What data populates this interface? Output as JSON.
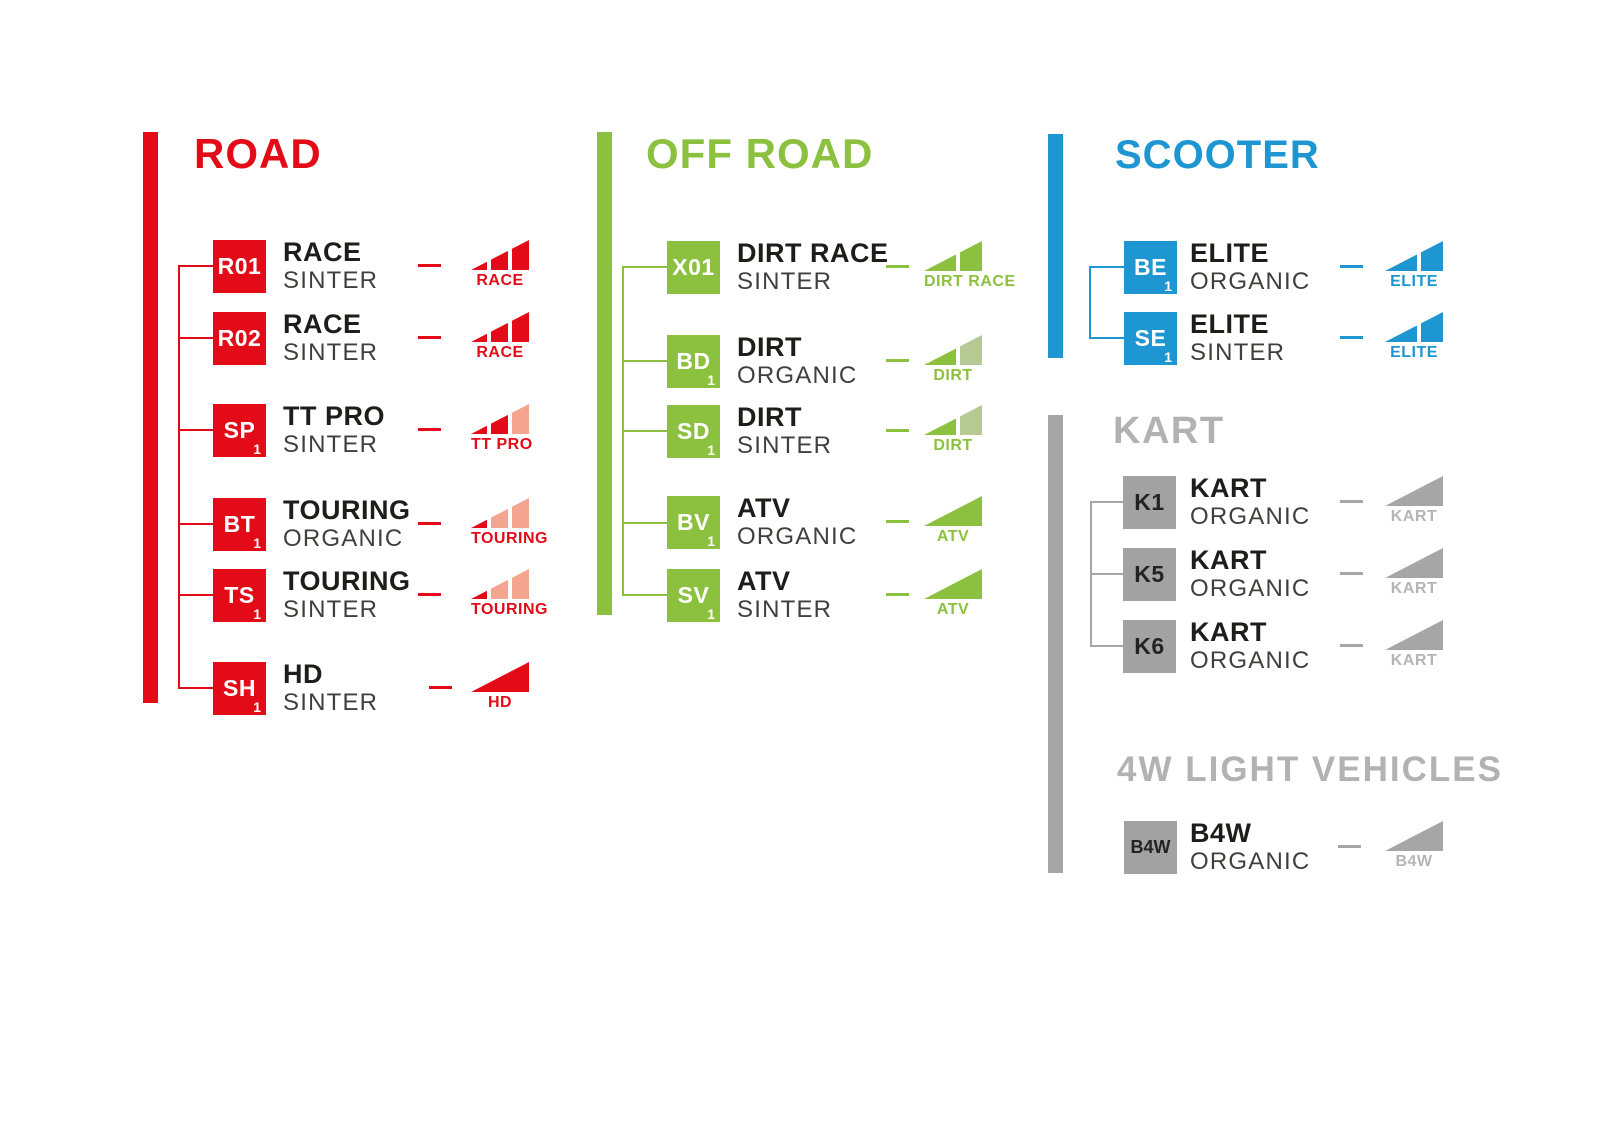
{
  "sections": {
    "road": {
      "title": "ROAD",
      "title_color": "#e30b17",
      "bar_color": "#e30b17",
      "badge_bg": "#e30b17",
      "badge_fg": "#ffffff",
      "accent": "#e30b17",
      "label_color": "#e30b17",
      "colors": {
        "full": "#e30b17",
        "light": "#f3a58f"
      },
      "items": [
        {
          "code": "R01",
          "sub": "",
          "name": "RACE",
          "material": "SINTER",
          "icon": {
            "label": "RACE",
            "segments": [
              "#e30b17",
              "#e30b17",
              "#e30b17"
            ]
          }
        },
        {
          "code": "R02",
          "sub": "",
          "name": "RACE",
          "material": "SINTER",
          "icon": {
            "label": "RACE",
            "segments": [
              "#e30b17",
              "#e30b17",
              "#e30b17"
            ]
          }
        },
        {
          "code": "SP",
          "sub": "1",
          "name": "TT PRO",
          "material": "SINTER",
          "icon": {
            "label": "TT PRO",
            "segments": [
              "#e30b17",
              "#e30b17",
              "#f3a58f"
            ]
          }
        },
        {
          "code": "BT",
          "sub": "1",
          "name": "TOURING",
          "material": "ORGANIC",
          "icon": {
            "label": "TOURING",
            "segments": [
              "#e30b17",
              "#f3a58f",
              "#f3a58f"
            ]
          }
        },
        {
          "code": "TS",
          "sub": "1",
          "name": "TOURING",
          "material": "SINTER",
          "icon": {
            "label": "TOURING",
            "segments": [
              "#e30b17",
              "#f3a58f",
              "#f3a58f"
            ]
          }
        },
        {
          "code": "SH",
          "sub": "1",
          "name": "HD",
          "material": "SINTER",
          "icon": {
            "label": "HD",
            "segments": [
              "#e30b17"
            ]
          }
        }
      ]
    },
    "offroad": {
      "title": "OFF ROAD",
      "title_color": "#8cc140",
      "bar_color": "#8cc140",
      "badge_bg": "#8cc140",
      "badge_fg": "#ffffff",
      "accent": "#8cc140",
      "label_color": "#8cc140",
      "colors": {
        "full": "#8cc140",
        "light": "#b6c893"
      },
      "items": [
        {
          "code": "X01",
          "sub": "",
          "name": "DIRT RACE",
          "material": "SINTER",
          "icon": {
            "label": "DIRT RACE",
            "segments": [
              "#8cc140",
              "#8cc140"
            ]
          }
        },
        {
          "code": "BD",
          "sub": "1",
          "name": "DIRT",
          "material": "ORGANIC",
          "icon": {
            "label": "DIRT",
            "segments": [
              "#8cc140",
              "#b6c893"
            ]
          }
        },
        {
          "code": "SD",
          "sub": "1",
          "name": "DIRT",
          "material": "SINTER",
          "icon": {
            "label": "DIRT",
            "segments": [
              "#8cc140",
              "#b6c893"
            ]
          }
        },
        {
          "code": "BV",
          "sub": "1",
          "name": "ATV",
          "material": "ORGANIC",
          "icon": {
            "label": "ATV",
            "segments": [
              "#8cc140"
            ]
          }
        },
        {
          "code": "SV",
          "sub": "1",
          "name": "ATV",
          "material": "SINTER",
          "icon": {
            "label": "ATV",
            "segments": [
              "#8cc140"
            ]
          }
        }
      ]
    },
    "scooter": {
      "title": "SCOOTER",
      "title_color": "#1d96d2",
      "bar_color": "#1d96d2",
      "badge_bg": "#1d96d2",
      "badge_fg": "#ffffff",
      "accent": "#1d96d2",
      "label_color": "#1d96d2",
      "colors": {
        "full": "#1d96d2"
      },
      "items": [
        {
          "code": "BE",
          "sub": "1",
          "name": "ELITE",
          "material": "ORGANIC",
          "icon": {
            "label": "ELITE",
            "segments": [
              "#1d96d2",
              "#1d96d2"
            ]
          }
        },
        {
          "code": "SE",
          "sub": "1",
          "name": "ELITE",
          "material": "SINTER",
          "icon": {
            "label": "ELITE",
            "segments": [
              "#1d96d2",
              "#1d96d2"
            ]
          }
        }
      ]
    },
    "kart": {
      "title": "KART",
      "title_color": "#b2b2b2",
      "bar_color": "#a6a6a6",
      "badge_bg": "#a2a2a2",
      "badge_fg": "#232323",
      "accent": "#a6a6a6",
      "label_color": "#b5b5b5",
      "colors": {
        "full": "#a6a6a6"
      },
      "items": [
        {
          "code": "K1",
          "sub": "",
          "name": "KART",
          "material": "ORGANIC",
          "icon": {
            "label": "KART",
            "segments": [
              "#a6a6a6"
            ]
          }
        },
        {
          "code": "K5",
          "sub": "",
          "name": "KART",
          "material": "ORGANIC",
          "icon": {
            "label": "KART",
            "segments": [
              "#a6a6a6"
            ]
          }
        },
        {
          "code": "K6",
          "sub": "",
          "name": "KART",
          "material": "ORGANIC",
          "icon": {
            "label": "KART",
            "segments": [
              "#a6a6a6"
            ]
          }
        }
      ]
    },
    "lv": {
      "title": "4W LIGHT VEHICLES",
      "title_color": "#b2b2b2",
      "badge_bg": "#a2a2a2",
      "badge_fg": "#232323",
      "accent": "#a6a6a6",
      "label_color": "#b5b5b5",
      "colors": {
        "full": "#a6a6a6"
      },
      "items": [
        {
          "code": "B4W",
          "sub": "",
          "name": "B4W",
          "material": "ORGANIC",
          "icon": {
            "label": "B4W",
            "segments": [
              "#a6a6a6"
            ]
          }
        }
      ]
    }
  }
}
